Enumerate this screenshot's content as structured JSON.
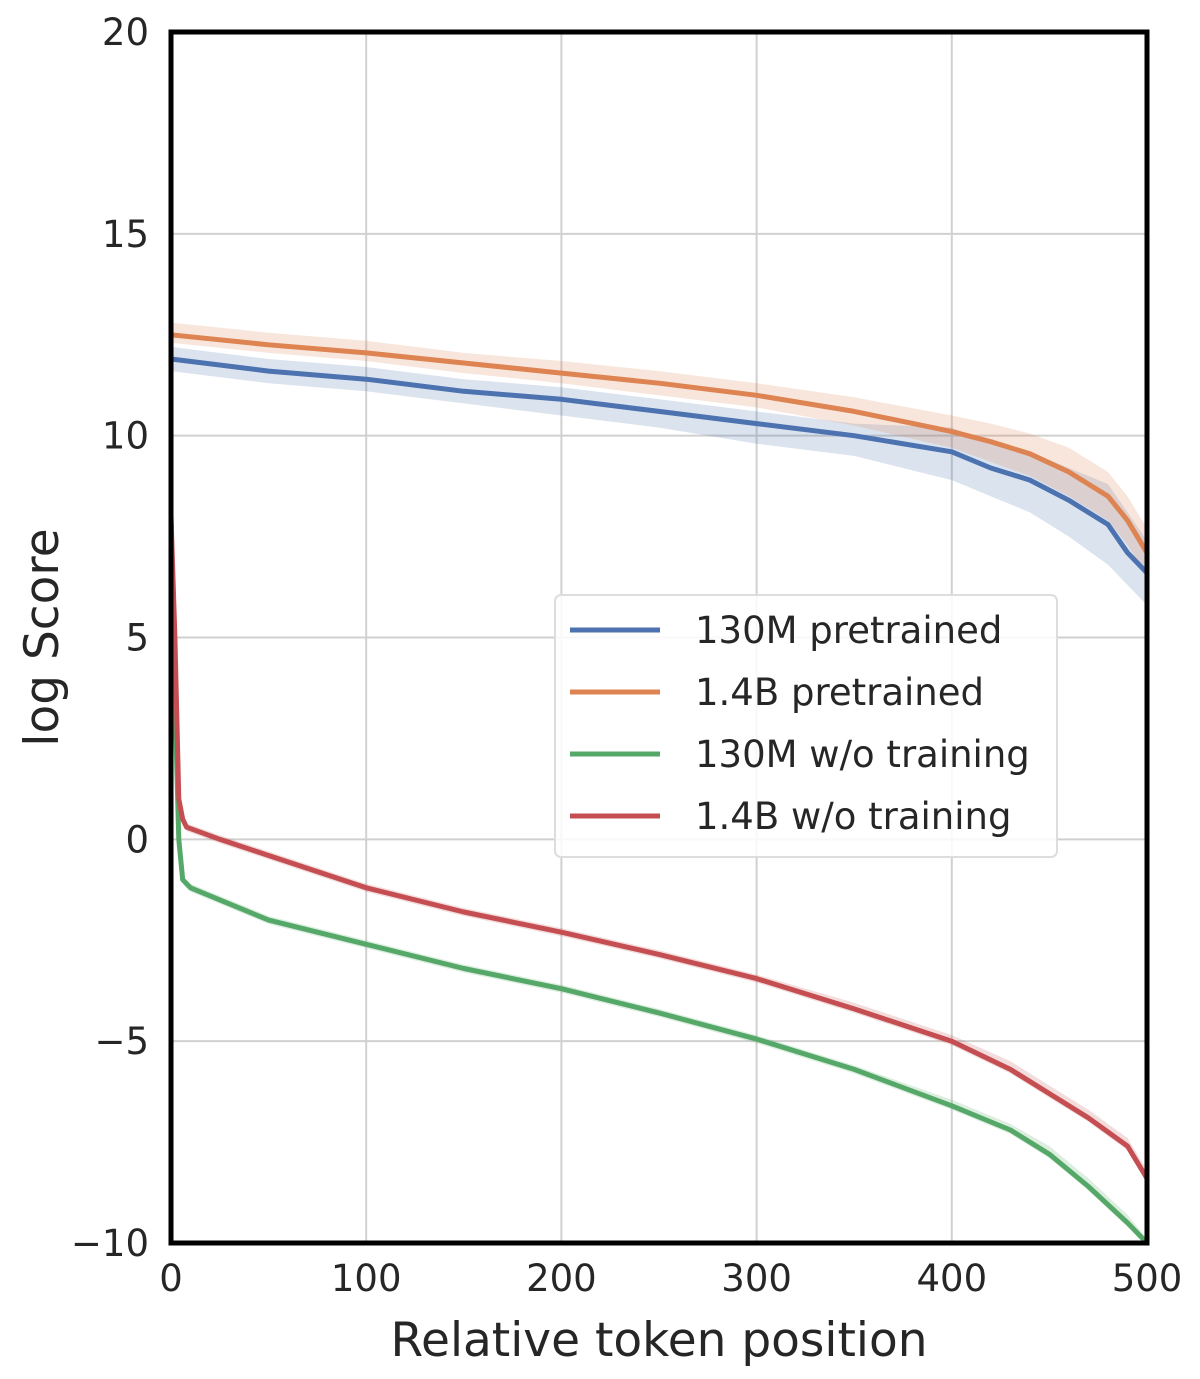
{
  "chart_data": {
    "type": "line",
    "title": "",
    "xlabel": "Relative token position",
    "ylabel": "log Score",
    "xlim": [
      0,
      500
    ],
    "ylim": [
      -10,
      20
    ],
    "xticks": [
      0,
      100,
      200,
      300,
      400,
      500
    ],
    "yticks": [
      -10,
      -5,
      0,
      5,
      10,
      15,
      20
    ],
    "xtick_labels": [
      "0",
      "100",
      "200",
      "300",
      "400",
      "500"
    ],
    "ytick_labels": [
      "−10",
      "−5",
      "0",
      "5",
      "10",
      "15",
      "20"
    ],
    "grid": true,
    "legend_position": "center-right",
    "series": [
      {
        "name": "130M pretrained",
        "color": "#4c72b0",
        "x": [
          0,
          50,
          100,
          150,
          200,
          250,
          300,
          350,
          400,
          420,
          440,
          460,
          480,
          490,
          500
        ],
        "y": [
          11.9,
          11.6,
          11.4,
          11.1,
          10.9,
          10.6,
          10.3,
          10.0,
          9.6,
          9.2,
          8.9,
          8.4,
          7.8,
          7.1,
          6.6
        ],
        "band_lower": [
          11.6,
          11.3,
          11.1,
          10.8,
          10.5,
          10.2,
          9.8,
          9.5,
          8.9,
          8.5,
          8.1,
          7.5,
          6.8,
          6.3,
          5.8
        ],
        "band_upper": [
          12.2,
          11.9,
          11.7,
          11.4,
          11.2,
          10.9,
          10.6,
          10.3,
          10.2,
          9.8,
          9.6,
          9.2,
          8.8,
          8.1,
          7.4
        ]
      },
      {
        "name": "1.4B pretrained",
        "color": "#dd8452",
        "x": [
          0,
          50,
          100,
          150,
          200,
          250,
          300,
          350,
          400,
          420,
          440,
          460,
          480,
          490,
          500
        ],
        "y": [
          12.5,
          12.25,
          12.05,
          11.8,
          11.55,
          11.3,
          11.0,
          10.6,
          10.1,
          9.85,
          9.55,
          9.1,
          8.5,
          7.9,
          7.1
        ],
        "band_lower": [
          12.3,
          12.05,
          11.85,
          11.55,
          11.3,
          11.0,
          10.7,
          10.25,
          9.7,
          9.35,
          9.0,
          8.5,
          7.9,
          7.3,
          6.5
        ],
        "band_upper": [
          12.8,
          12.55,
          12.35,
          12.05,
          11.85,
          11.6,
          11.3,
          10.95,
          10.5,
          10.3,
          10.05,
          9.7,
          9.1,
          8.5,
          7.7
        ]
      },
      {
        "name": "130M w/o training",
        "color": "#55a868",
        "x": [
          0,
          2,
          4,
          6,
          10,
          25,
          50,
          100,
          150,
          200,
          250,
          300,
          350,
          400,
          430,
          450,
          470,
          490,
          500
        ],
        "y": [
          8.0,
          3.5,
          0.0,
          -1.0,
          -1.2,
          -1.5,
          -2.0,
          -2.6,
          -3.2,
          -3.7,
          -4.3,
          -4.95,
          -5.7,
          -6.6,
          -7.2,
          -7.8,
          -8.6,
          -9.5,
          -10.0
        ],
        "band_lower": [
          8.0,
          3.4,
          -0.1,
          -1.1,
          -1.3,
          -1.6,
          -2.1,
          -2.7,
          -3.3,
          -3.8,
          -4.4,
          -5.05,
          -5.8,
          -6.7,
          -7.3,
          -7.9,
          -8.7,
          -9.6,
          -10.0
        ],
        "band_upper": [
          8.0,
          3.6,
          0.1,
          -0.9,
          -1.1,
          -1.4,
          -1.9,
          -2.5,
          -3.1,
          -3.6,
          -4.2,
          -4.85,
          -5.6,
          -6.45,
          -7.05,
          -7.6,
          -8.4,
          -9.3,
          -9.9
        ]
      },
      {
        "name": "1.4B w/o training",
        "color": "#c44e52",
        "x": [
          0,
          2,
          4,
          6,
          8,
          25,
          50,
          100,
          150,
          200,
          250,
          300,
          350,
          400,
          430,
          450,
          470,
          490,
          500
        ],
        "y": [
          8.0,
          5.0,
          1.0,
          0.5,
          0.3,
          0.0,
          -0.4,
          -1.2,
          -1.8,
          -2.3,
          -2.85,
          -3.45,
          -4.2,
          -5.0,
          -5.7,
          -6.3,
          -6.9,
          -7.6,
          -8.4
        ],
        "band_lower": [
          8.0,
          4.9,
          0.9,
          0.4,
          0.2,
          -0.1,
          -0.5,
          -1.3,
          -1.9,
          -2.4,
          -2.95,
          -3.55,
          -4.3,
          -5.1,
          -5.8,
          -6.4,
          -7.0,
          -7.7,
          -8.5
        ],
        "band_upper": [
          8.0,
          5.1,
          1.1,
          0.6,
          0.4,
          0.1,
          -0.3,
          -1.1,
          -1.7,
          -2.2,
          -2.75,
          -3.35,
          -4.05,
          -4.85,
          -5.5,
          -6.1,
          -6.7,
          -7.4,
          -8.2
        ]
      }
    ]
  }
}
